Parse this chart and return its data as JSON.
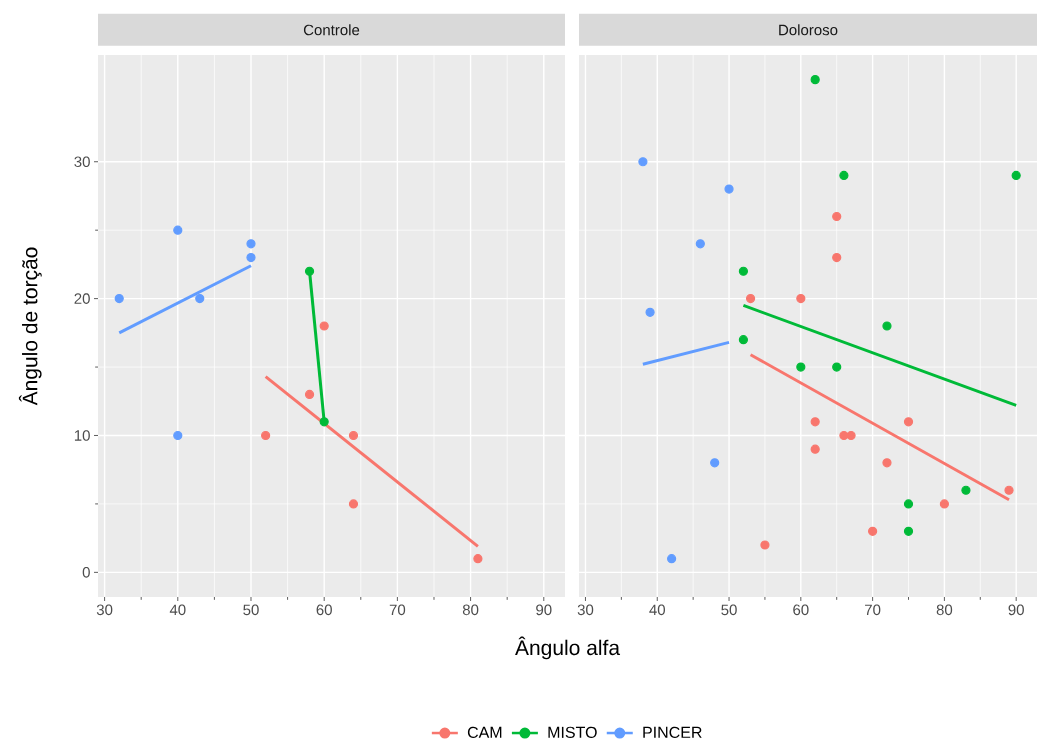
{
  "chart_data": [
    {
      "type": "scatter",
      "title": "Controle",
      "xlabel": "Ângulo alfa",
      "ylabel": "Ângulo de torção",
      "xlim": [
        29.1,
        92.9
      ],
      "ylim": [
        -1.8,
        37.8
      ],
      "xticks": [
        30,
        40,
        50,
        60,
        70,
        80,
        90
      ],
      "yticks": [
        0,
        10,
        20,
        30
      ],
      "grid": true,
      "legend": "bottom",
      "series": [
        {
          "marker": "circle",
          "color": "#f8766d",
          "x": [
            52,
            58,
            60,
            64,
            64,
            81
          ],
          "values": [
            10,
            13,
            18,
            10,
            5,
            1
          ]
        },
        {
          "marker": "circle",
          "color": "#00ba38",
          "x": [
            58,
            60
          ],
          "values": [
            22,
            11
          ]
        },
        {
          "marker": "circle",
          "color": "#619cff",
          "x": [
            32,
            40,
            40,
            43,
            50,
            50
          ],
          "values": [
            20,
            25,
            10,
            20,
            24,
            23
          ]
        },
        {
          "type": "line",
          "name": "CAM",
          "color": "#f8766d",
          "x": [
            52,
            81
          ],
          "values": [
            14.3,
            1.9
          ]
        },
        {
          "type": "line",
          "name": "MISTO",
          "color": "#00ba38",
          "x": [
            58,
            60
          ],
          "values": [
            22,
            11
          ]
        },
        {
          "type": "line",
          "name": "PINCER",
          "color": "#619cff",
          "x": [
            32,
            50
          ],
          "values": [
            17.5,
            22.4
          ]
        }
      ]
    },
    {
      "type": "scatter",
      "title": "Doloroso",
      "xlim": [
        29.1,
        92.9
      ],
      "ylim": [
        -1.8,
        37.8
      ],
      "xticks": [
        30,
        40,
        50,
        60,
        70,
        80,
        90
      ],
      "yticks": [
        0,
        10,
        20,
        30
      ],
      "grid": true,
      "tick_labels": "x",
      "series": [
        {
          "marker": "circle",
          "color": "#f8766d",
          "x": [
            53,
            60,
            65,
            65,
            62,
            62,
            66,
            67,
            75,
            72,
            70,
            80,
            89,
            55
          ],
          "values": [
            20,
            20,
            26,
            23,
            11,
            9,
            10,
            10,
            11,
            8,
            3,
            5,
            6,
            2
          ]
        },
        {
          "marker": "circle",
          "color": "#00ba38",
          "x": [
            62,
            66,
            90,
            52,
            52,
            72,
            60,
            65,
            83,
            75,
            75
          ],
          "values": [
            36,
            29,
            29,
            22,
            17,
            18,
            15,
            15,
            6,
            5,
            3
          ]
        },
        {
          "marker": "circle",
          "color": "#619cff",
          "x": [
            38,
            50,
            46,
            39,
            48,
            42
          ],
          "values": [
            30,
            28,
            24,
            19,
            8,
            1
          ]
        },
        {
          "type": "line",
          "color": "#f8766d",
          "x": [
            53,
            89
          ],
          "values": [
            15.9,
            5.3
          ]
        },
        {
          "type": "line",
          "color": "#00ba38",
          "x": [
            52,
            90
          ],
          "values": [
            19.5,
            12.2
          ]
        },
        {
          "type": "line",
          "color": "#619cff",
          "x": [
            38,
            50
          ],
          "values": [
            15.2,
            16.8
          ]
        }
      ]
    }
  ]
}
